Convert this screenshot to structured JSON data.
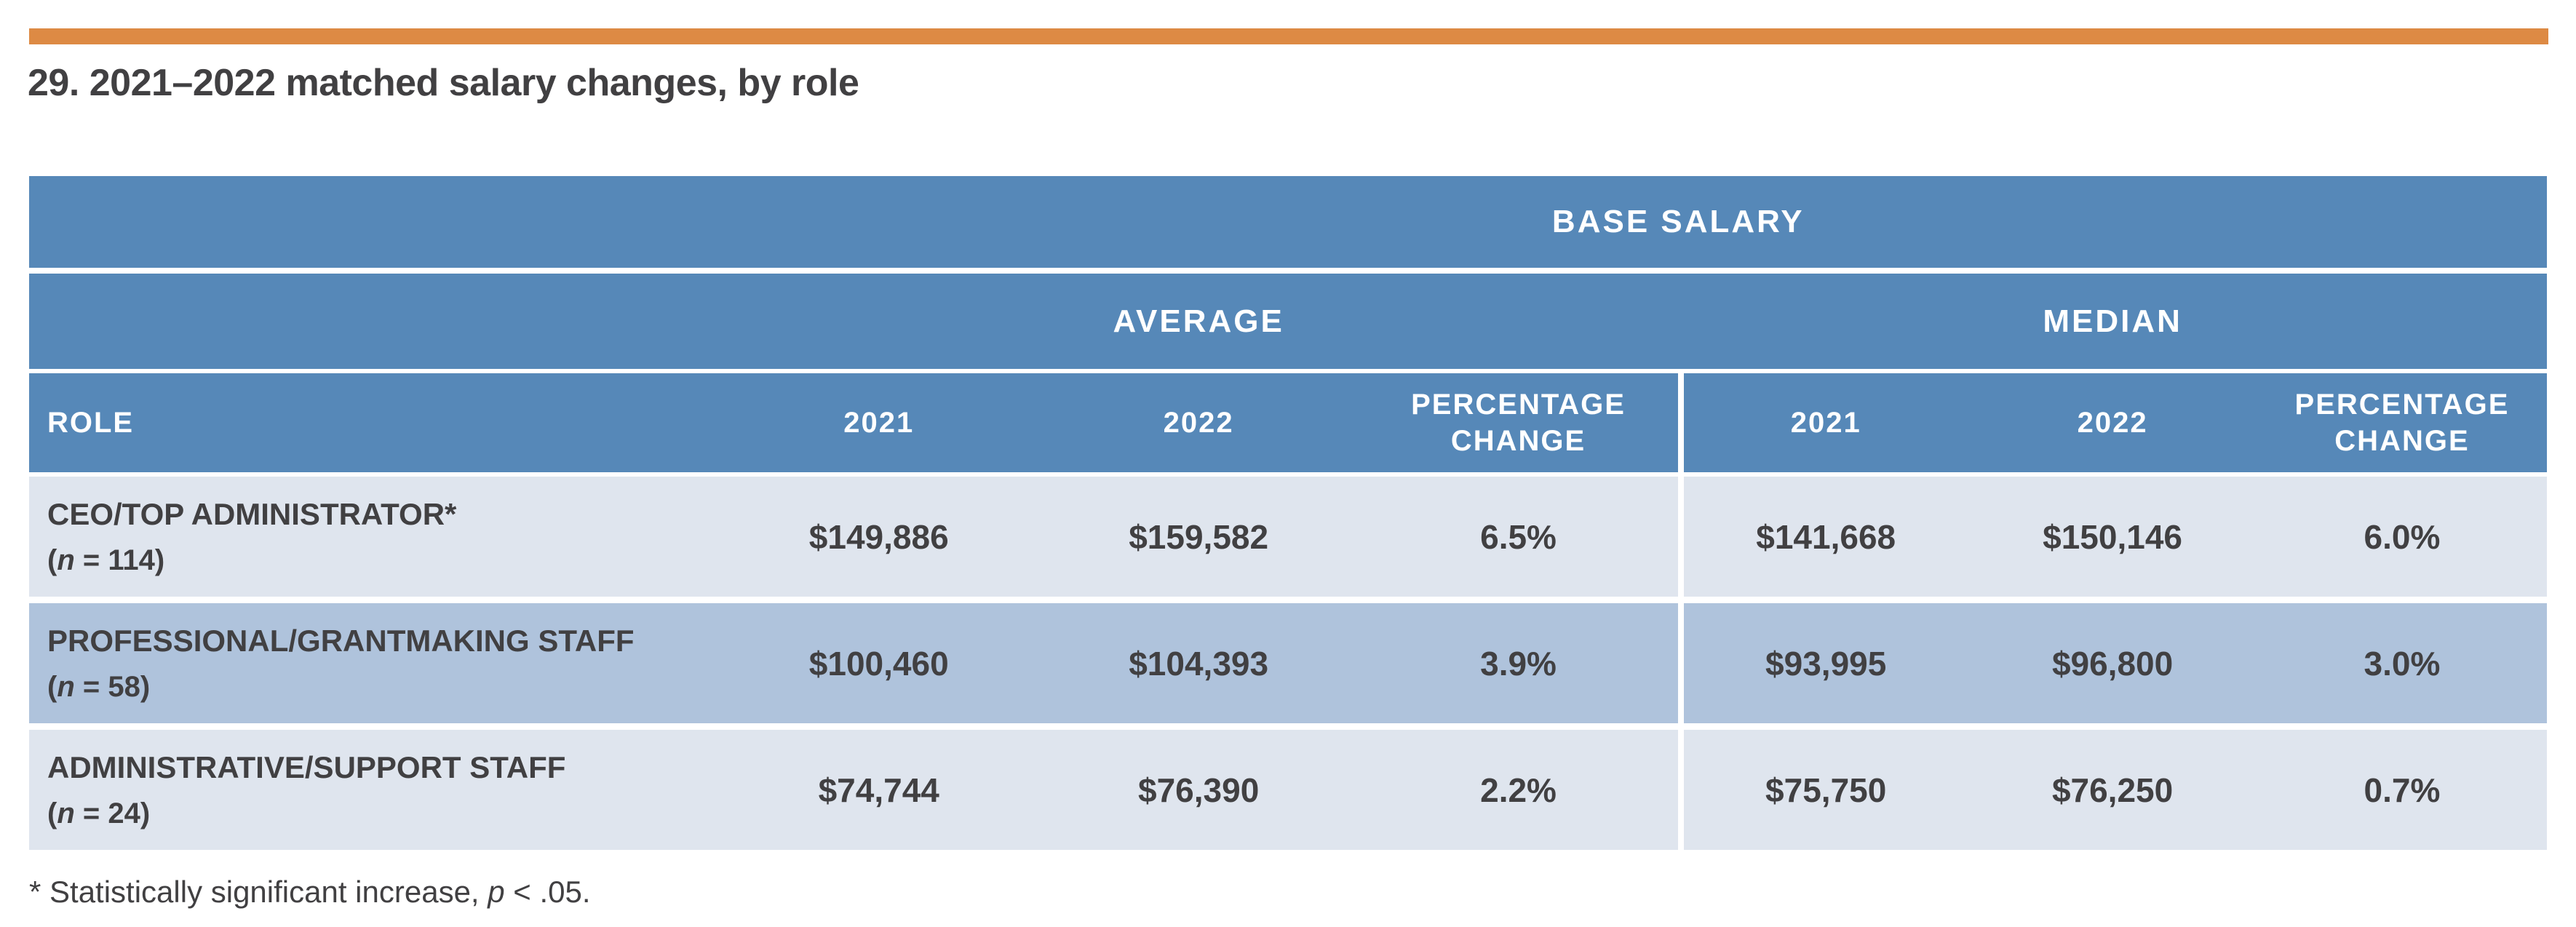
{
  "page": {
    "title": "29. 2021–2022 matched salary changes, by role"
  },
  "palette": {
    "accent_bar": "#DD8A44",
    "header_blue": "#5688B8",
    "row_light": "#DFE5EE",
    "row_medium": "#AFC3DC",
    "text_ink": "#414042"
  },
  "table": {
    "top_header": "BASE SALARY",
    "group_headers": {
      "average": "AVERAGE",
      "median": "MEDIAN"
    },
    "columns": {
      "role": "ROLE",
      "avg_2021": "2021",
      "avg_2022": "2022",
      "avg_pct": "PERCENTAGE CHANGE",
      "med_2021": "2021",
      "med_2022": "2022",
      "med_pct": "PERCENTAGE CHANGE"
    },
    "rows": [
      {
        "name": "CEO/TOP ADMINISTRATOR*",
        "n_prefix": "(",
        "n_symbol": "n",
        "n_suffix": " = 114)",
        "avg_2021": "$149,886",
        "avg_2022": "$159,582",
        "avg_pct": "6.5%",
        "med_2021": "$141,668",
        "med_2022": "$150,146",
        "med_pct": "6.0%"
      },
      {
        "name": "PROFESSIONAL/GRANTMAKING STAFF",
        "n_prefix": "(",
        "n_symbol": "n",
        "n_suffix": " = 58)",
        "avg_2021": "$100,460",
        "avg_2022": "$104,393",
        "avg_pct": "3.9%",
        "med_2021": "$93,995",
        "med_2022": "$96,800",
        "med_pct": "3.0%"
      },
      {
        "name": "ADMINISTRATIVE/SUPPORT STAFF",
        "n_prefix": "(",
        "n_symbol": "n",
        "n_suffix": " = 24)",
        "avg_2021": "$74,744",
        "avg_2022": "$76,390",
        "avg_pct": "2.2%",
        "med_2021": "$75,750",
        "med_2022": "$76,250",
        "med_pct": "0.7%"
      }
    ]
  },
  "footnote": {
    "prefix": "* Statistically significant increase, ",
    "symbol": "p",
    "suffix": " < .05."
  }
}
